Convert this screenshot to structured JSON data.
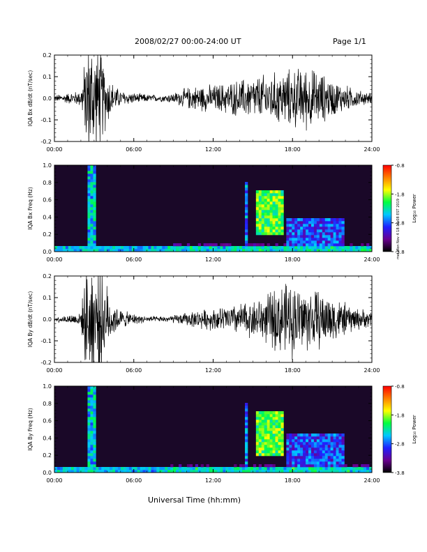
{
  "header": {
    "title": "2008/02/27  00:00-24:00 UT",
    "page": "Page 1/1"
  },
  "xlabel": "Universal Time (hh:mm)",
  "side_stamp": "mel Mon Nov 4 18:18:08 EST 2019",
  "x_ticks": [
    "00:00",
    "06:00",
    "12:00",
    "18:00",
    "24:00"
  ],
  "colorbar": {
    "title": "Log₁₀ Power",
    "ticks": [
      "-0.8",
      "-1.8",
      "-2.8",
      "-3.8"
    ],
    "stops": [
      "#000000",
      "#6a0090",
      "#2020ff",
      "#00c8ff",
      "#00ff40",
      "#ffff00",
      "#ff8000",
      "#ff0000"
    ]
  },
  "chart_data": [
    {
      "type": "line",
      "ylabel": "IQA Bx dB/dt (nT/sec)",
      "ylim": [
        -0.2,
        0.2
      ],
      "y_ticks": [
        "0.2",
        "0.1",
        "0.0",
        "-0.1",
        "-0.2"
      ],
      "x": [
        0,
        1,
        2,
        2.5,
        2.8,
        3.0,
        3.5,
        4,
        4.5,
        5,
        6,
        7,
        8,
        9,
        10,
        11,
        12,
        13,
        14,
        15,
        16,
        17,
        18,
        19,
        20,
        21,
        22,
        23,
        24
      ],
      "amplitude": [
        0.012,
        0.02,
        0.03,
        0.22,
        0.22,
        0.22,
        0.18,
        0.1,
        0.05,
        0.03,
        0.02,
        0.015,
        0.012,
        0.02,
        0.04,
        0.05,
        0.05,
        0.06,
        0.07,
        0.08,
        0.09,
        0.1,
        0.11,
        0.12,
        0.1,
        0.07,
        0.05,
        0.03,
        0.02
      ],
      "color": "#000000"
    },
    {
      "type": "heatmap",
      "ylabel": "IQA Bx Freq (Hz)",
      "ylim": [
        0.0,
        1.0
      ],
      "y_ticks": [
        "1.0",
        "0.8",
        "0.6",
        "0.4",
        "0.2",
        "0.0"
      ],
      "zlim": [
        -3.8,
        -0.8
      ],
      "features": [
        {
          "x": [
            2.5,
            3.2
          ],
          "y": [
            0.0,
            1.0
          ],
          "level": -2.4
        },
        {
          "x": [
            14.5,
            14.6
          ],
          "y": [
            0.0,
            0.8
          ],
          "level": -2.6
        },
        {
          "x": [
            15.3,
            17.3
          ],
          "y": [
            0.2,
            0.7
          ],
          "level": -1.9
        },
        {
          "x": [
            17.5,
            22
          ],
          "y": [
            0.0,
            0.4
          ],
          "level": -2.8
        }
      ]
    },
    {
      "type": "line",
      "ylabel": "IQA By dB/dt (nT/sec)",
      "ylim": [
        -0.2,
        0.2
      ],
      "y_ticks": [
        "0.2",
        "0.1",
        "0.0",
        "-0.1",
        "-0.2"
      ],
      "x": [
        0,
        1,
        2,
        2.5,
        2.8,
        3.0,
        3.5,
        4,
        4.5,
        5,
        6,
        7,
        8,
        9,
        10,
        11,
        12,
        13,
        14,
        15,
        16,
        17,
        18,
        19,
        20,
        21,
        22,
        23,
        24
      ],
      "amplitude": [
        0.01,
        0.015,
        0.03,
        0.22,
        0.22,
        0.22,
        0.2,
        0.12,
        0.06,
        0.035,
        0.02,
        0.012,
        0.01,
        0.015,
        0.025,
        0.035,
        0.04,
        0.05,
        0.06,
        0.07,
        0.09,
        0.13,
        0.14,
        0.12,
        0.11,
        0.09,
        0.06,
        0.04,
        0.03
      ],
      "color": "#000000"
    },
    {
      "type": "heatmap",
      "ylabel": "IQA By Freq (Hz)",
      "ylim": [
        0.0,
        1.0
      ],
      "y_ticks": [
        "1.0",
        "0.8",
        "0.6",
        "0.4",
        "0.2",
        "0.0"
      ],
      "zlim": [
        -3.8,
        -0.8
      ],
      "features": [
        {
          "x": [
            2.5,
            3.2
          ],
          "y": [
            0.0,
            1.0
          ],
          "level": -2.4
        },
        {
          "x": [
            14.5,
            14.6
          ],
          "y": [
            0.0,
            0.8
          ],
          "level": -2.6
        },
        {
          "x": [
            15.3,
            17.3
          ],
          "y": [
            0.2,
            0.7
          ],
          "level": -1.9
        },
        {
          "x": [
            17.5,
            22
          ],
          "y": [
            0.0,
            0.45
          ],
          "level": -2.8
        }
      ]
    }
  ]
}
